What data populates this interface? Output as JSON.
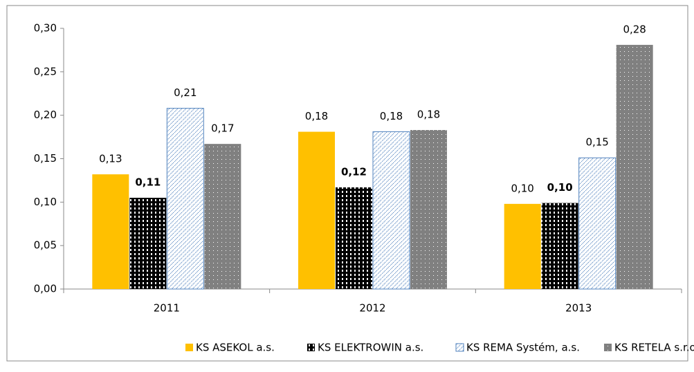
{
  "chart_data": {
    "type": "bar",
    "categories": [
      "2011",
      "2012",
      "2013"
    ],
    "series": [
      {
        "name": "KS ASEKOL a.s.",
        "color": "#ffc000",
        "values": [
          0.132,
          0.181,
          0.098
        ],
        "value_labels": [
          "0,13",
          "0,18",
          "0,10"
        ]
      },
      {
        "name": "KS ELEKTROWIN a.s.",
        "color": "#000000",
        "values": [
          0.105,
          0.117,
          0.099
        ],
        "value_labels": [
          "0,11",
          "0,12",
          "0,10"
        ]
      },
      {
        "name": "KS REMA Systém, a.s.",
        "color": "#4f81bd",
        "values": [
          0.208,
          0.181,
          0.151
        ],
        "value_labels": [
          "0,21",
          "0,18",
          "0,15"
        ]
      },
      {
        "name": "KS RETELA s.r.o.",
        "color": "#808080",
        "values": [
          0.167,
          0.183,
          0.281
        ],
        "value_labels": [
          "0,17",
          "0,18",
          "0,28"
        ]
      }
    ],
    "ylim": [
      0,
      0.3
    ],
    "yticks": [
      {
        "value": 0,
        "label": "0,00"
      },
      {
        "value": 0.05,
        "label": "0,05"
      },
      {
        "value": 0.1,
        "label": "0,10"
      },
      {
        "value": 0.15,
        "label": "0,15"
      },
      {
        "value": 0.2,
        "label": "0,20"
      },
      {
        "value": 0.25,
        "label": "0,25"
      },
      {
        "value": 0.3,
        "label": "0,30"
      }
    ],
    "legend": "bottom"
  }
}
